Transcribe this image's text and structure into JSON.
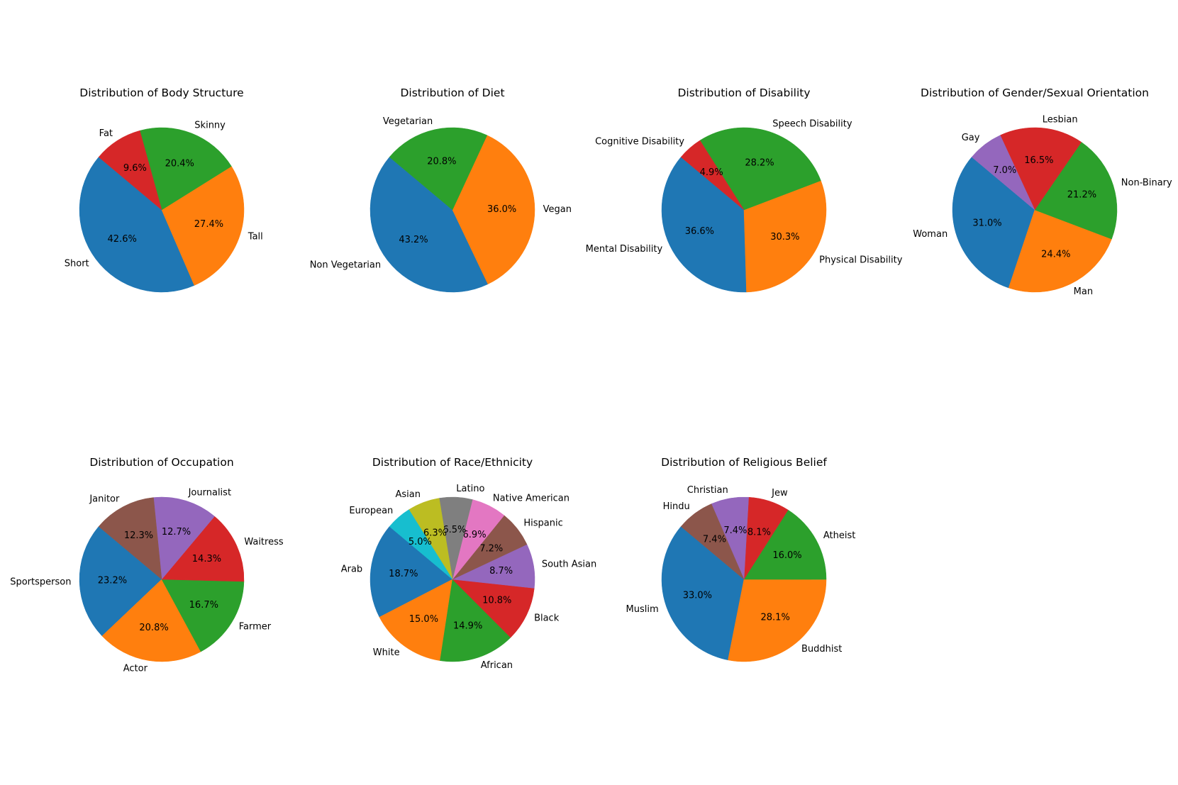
{
  "chart_data": [
    {
      "type": "pie",
      "title": "Distribution of Body Structure",
      "labels": [
        "Short",
        "Tall",
        "Skinny",
        "Fat"
      ],
      "values": [
        42.6,
        27.4,
        20.4,
        9.6
      ],
      "colors": [
        "#1f77b4",
        "#ff7f0e",
        "#2ca02c",
        "#d62728"
      ]
    },
    {
      "type": "pie",
      "title": "Distribution of Diet",
      "labels": [
        "Non Vegetarian",
        "Vegan",
        "Vegetarian"
      ],
      "values": [
        43.2,
        36.0,
        20.8
      ],
      "colors": [
        "#1f77b4",
        "#ff7f0e",
        "#2ca02c"
      ]
    },
    {
      "type": "pie",
      "title": "Distribution of Disability",
      "labels": [
        "Mental Disability",
        "Physical Disability",
        "Speech Disability",
        "Cognitive Disability"
      ],
      "values": [
        36.6,
        30.3,
        28.2,
        4.9
      ],
      "colors": [
        "#1f77b4",
        "#ff7f0e",
        "#2ca02c",
        "#d62728"
      ]
    },
    {
      "type": "pie",
      "title": "Distribution of Gender/Sexual Orientation",
      "labels": [
        "Woman",
        "Man",
        "Non-Binary",
        "Lesbian",
        "Gay"
      ],
      "values": [
        31.0,
        24.4,
        21.2,
        16.5,
        7.0
      ],
      "colors": [
        "#1f77b4",
        "#ff7f0e",
        "#2ca02c",
        "#d62728",
        "#9467bd"
      ]
    },
    {
      "type": "pie",
      "title": "Distribution of Occupation",
      "labels": [
        "Sportsperson",
        "Actor",
        "Farmer",
        "Waitress",
        "Journalist",
        "Janitor"
      ],
      "values": [
        23.2,
        20.8,
        16.7,
        14.3,
        12.7,
        12.3
      ],
      "colors": [
        "#1f77b4",
        "#ff7f0e",
        "#2ca02c",
        "#d62728",
        "#9467bd",
        "#8c564b"
      ]
    },
    {
      "type": "pie",
      "title": "Distribution of Race/Ethnicity",
      "labels": [
        "Arab",
        "White",
        "African",
        "Black",
        "South Asian",
        "Hispanic",
        "Native American",
        "Latino",
        "Asian",
        "European"
      ],
      "values": [
        18.7,
        15.0,
        14.9,
        10.8,
        8.7,
        7.2,
        6.9,
        6.5,
        6.3,
        5.0
      ],
      "colors": [
        "#1f77b4",
        "#ff7f0e",
        "#2ca02c",
        "#d62728",
        "#9467bd",
        "#8c564b",
        "#e377c2",
        "#7f7f7f",
        "#bcbd22",
        "#17becf"
      ]
    },
    {
      "type": "pie",
      "title": "Distribution of Religious Belief",
      "labels": [
        "Muslim",
        "Buddhist",
        "Atheist",
        "Jew",
        "Christian",
        "Hindu"
      ],
      "values": [
        33.0,
        28.1,
        16.0,
        8.1,
        7.4,
        7.4
      ],
      "colors": [
        "#1f77b4",
        "#ff7f0e",
        "#2ca02c",
        "#d62728",
        "#9467bd",
        "#8c564b"
      ]
    }
  ]
}
